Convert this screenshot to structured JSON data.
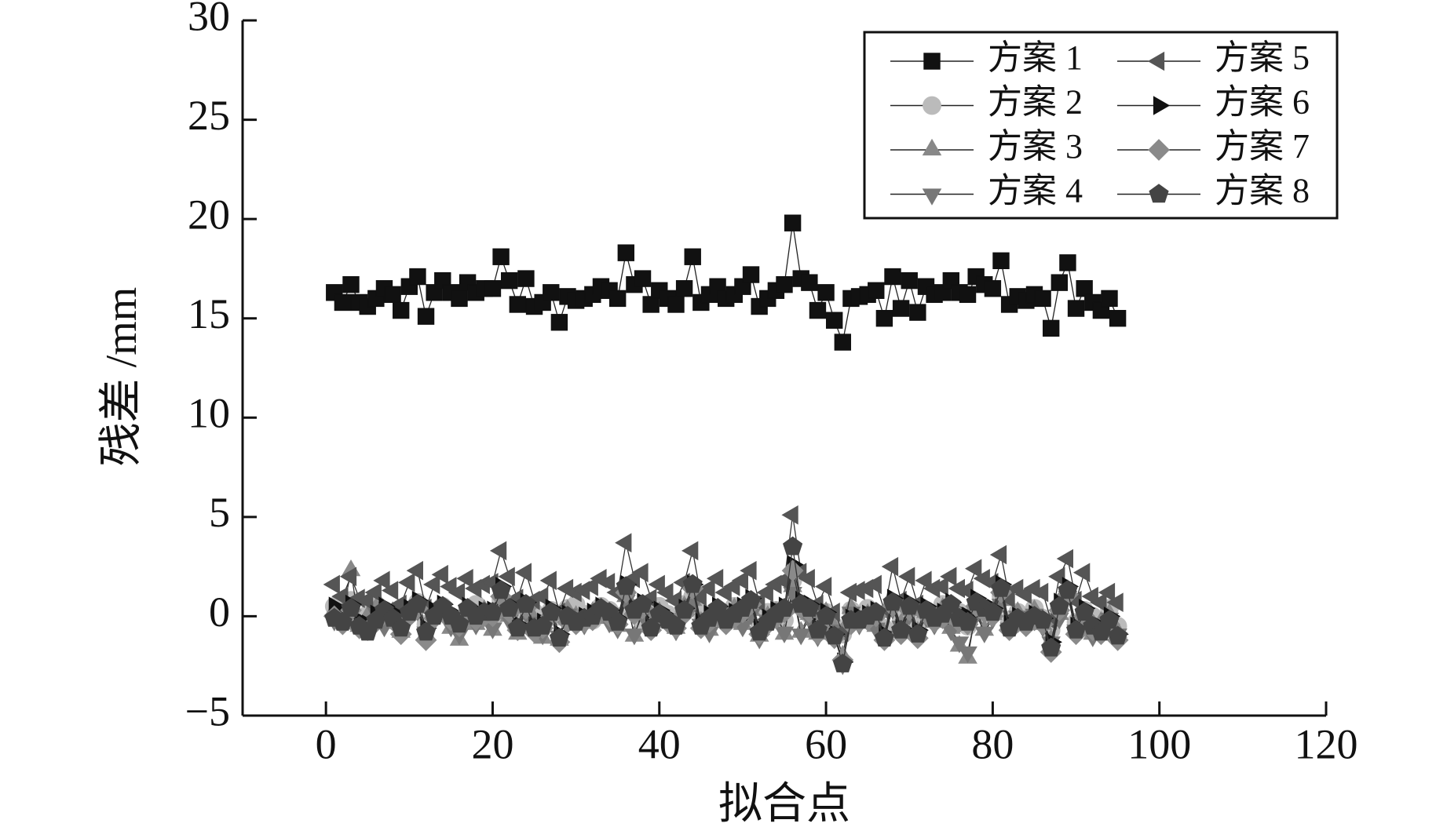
{
  "chart_data": {
    "type": "line",
    "x_label": "拟合点",
    "y_label": "残差 /mm",
    "x": [
      1,
      2,
      3,
      4,
      5,
      6,
      7,
      8,
      9,
      10,
      11,
      12,
      13,
      14,
      15,
      16,
      17,
      18,
      19,
      20,
      21,
      22,
      23,
      24,
      25,
      26,
      27,
      28,
      29,
      30,
      31,
      32,
      33,
      34,
      35,
      36,
      37,
      38,
      39,
      40,
      41,
      42,
      43,
      44,
      45,
      46,
      47,
      48,
      49,
      50,
      51,
      52,
      53,
      54,
      55,
      56,
      57,
      58,
      59,
      60,
      61,
      62,
      63,
      64,
      65,
      66,
      67,
      68,
      69,
      70,
      71,
      72,
      73,
      74,
      75,
      76,
      77,
      78,
      79,
      80,
      81,
      82,
      83,
      84,
      85,
      86,
      87,
      88,
      89,
      90,
      91,
      92,
      93,
      94,
      95
    ],
    "xlim": [
      -10,
      120
    ],
    "xticks": [
      0,
      20,
      40,
      60,
      80,
      100,
      120
    ],
    "ylim": [
      -5,
      30
    ],
    "yticks": [
      {
        "value": -5,
        "label": "−5"
      },
      0,
      5,
      10,
      15,
      20,
      25,
      30
    ],
    "legend_position": "upper right",
    "series": [
      {
        "name": "方案 1",
        "color": "#111111",
        "marker": "square",
        "values": [
          16.3,
          15.8,
          16.7,
          15.8,
          15.6,
          16.0,
          16.5,
          16.2,
          15.4,
          16.6,
          17.1,
          15.1,
          16.3,
          16.9,
          16.3,
          16.0,
          16.8,
          16.3,
          16.5,
          16.5,
          18.1,
          16.9,
          15.7,
          17.0,
          15.6,
          15.8,
          16.3,
          14.8,
          16.1,
          15.9,
          16.0,
          16.2,
          16.6,
          16.4,
          16.0,
          18.3,
          16.7,
          17.0,
          15.7,
          16.4,
          16.0,
          15.7,
          16.5,
          18.1,
          15.8,
          16.2,
          16.6,
          16.0,
          16.2,
          16.6,
          17.2,
          15.6,
          16.0,
          16.4,
          16.7,
          19.8,
          17.0,
          16.8,
          15.4,
          16.3,
          14.9,
          13.8,
          16.0,
          16.1,
          16.2,
          16.4,
          15.0,
          17.1,
          15.5,
          16.9,
          15.3,
          16.6,
          16.2,
          16.3,
          16.9,
          16.3,
          16.2,
          17.1,
          16.7,
          16.5,
          17.9,
          15.7,
          16.1,
          15.9,
          16.2,
          16.0,
          14.5,
          16.8,
          17.8,
          15.5,
          16.5,
          15.8,
          15.4,
          16.0,
          15.0
        ]
      },
      {
        "name": "方案 2",
        "color": "#bbbbbb",
        "marker": "circle",
        "values": [
          0.5,
          0.2,
          0.8,
          -0.3,
          0.1,
          0.6,
          0.3,
          -0.2,
          0.4,
          0.1,
          0.7,
          -0.4,
          0.2,
          0.5,
          0.0,
          -0.3,
          0.3,
          0.6,
          0.1,
          -0.2,
          0.8,
          0.4,
          -0.1,
          0.5,
          0.2,
          -0.5,
          0.3,
          0.0,
          0.4,
          0.6,
          0.1,
          -0.2,
          0.5,
          0.3,
          0.0,
          1.2,
          0.4,
          -0.3,
          0.2,
          0.5,
          0.1,
          -0.1,
          0.6,
          1.0,
          0.2,
          -0.4,
          0.3,
          0.1,
          0.5,
          0.0,
          0.4,
          -0.6,
          0.2,
          0.3,
          -0.2,
          1.8,
          0.5,
          0.1,
          -0.3,
          0.2,
          -0.5,
          -0.9,
          0.3,
          0.1,
          0.4,
          0.0,
          -0.6,
          0.7,
          -0.2,
          0.5,
          -0.4,
          0.3,
          0.1,
          0.6,
          0.0,
          0.2,
          -0.5,
          0.4,
          0.1,
          0.3,
          1.0,
          -0.2,
          0.2,
          0.0,
          0.4,
          -0.1,
          -0.7,
          0.5,
          1.1,
          -0.3,
          0.3,
          0.0,
          -0.2,
          0.4,
          -0.5
        ]
      },
      {
        "name": "方案 3",
        "color": "#888888",
        "marker": "triangle-up",
        "values": [
          0.3,
          0.1,
          2.3,
          -0.5,
          0.0,
          0.4,
          -0.3,
          0.2,
          -0.8,
          0.3,
          0.5,
          -0.9,
          0.1,
          0.4,
          -0.6,
          -1.2,
          0.2,
          -0.4,
          0.3,
          -0.7,
          0.6,
          0.0,
          -0.9,
          0.4,
          -0.2,
          -1.1,
          0.1,
          -1.2,
          0.3,
          0.0,
          -0.3,
          0.2,
          0.4,
          -0.1,
          -0.5,
          1.0,
          -1.0,
          0.3,
          -0.4,
          0.2,
          -0.2,
          -0.6,
          0.5,
          0.8,
          -0.3,
          -0.7,
          0.2,
          -0.1,
          0.4,
          -0.4,
          0.3,
          -1.0,
          0.0,
          0.2,
          -0.9,
          1.5,
          -0.8,
          0.1,
          -0.9,
          0.2,
          -0.6,
          -2.0,
          0.4,
          -0.3,
          0.1,
          -0.5,
          -0.9,
          0.6,
          -0.4,
          0.3,
          -0.8,
          0.2,
          -0.3,
          0.4,
          -0.6,
          -1.5,
          -2.1,
          0.3,
          -0.7,
          0.1,
          0.8,
          -0.5,
          0.2,
          -0.3,
          0.3,
          -0.4,
          -1.2,
          0.1,
          1.3,
          -0.6,
          0.2,
          -0.9,
          -0.3,
          0.1,
          -0.8
        ]
      },
      {
        "name": "方案 4",
        "color": "#777777",
        "marker": "triangle-down",
        "values": [
          -0.2,
          0.1,
          0.4,
          -0.6,
          -0.3,
          0.2,
          -0.5,
          0.0,
          -0.7,
          0.1,
          0.3,
          -0.8,
          -0.1,
          0.2,
          -0.5,
          -0.9,
          0.0,
          -0.4,
          0.1,
          -0.6,
          0.4,
          -0.2,
          -0.7,
          0.2,
          -0.3,
          -0.9,
          0.0,
          -1.0,
          0.1,
          -0.2,
          -0.4,
          0.0,
          0.2,
          -0.3,
          -0.6,
          0.8,
          -0.9,
          0.1,
          -0.5,
          0.0,
          -0.3,
          -0.7,
          0.3,
          0.6,
          -0.4,
          -0.8,
          0.0,
          -0.2,
          0.2,
          -0.5,
          0.1,
          -1.1,
          -0.2,
          0.0,
          -0.8,
          1.2,
          -0.9,
          -0.1,
          -1.0,
          0.0,
          -0.7,
          -2.4,
          0.2,
          -0.4,
          -0.1,
          -0.6,
          -1.0,
          0.4,
          -0.5,
          0.1,
          -0.9,
          0.0,
          -0.4,
          0.2,
          -0.7,
          -1.3,
          -1.8,
          0.1,
          -0.8,
          -0.1,
          0.6,
          -0.6,
          0.0,
          -0.4,
          0.1,
          -0.5,
          -1.3,
          -0.1,
          1.0,
          -0.7,
          0.0,
          -1.0,
          -0.4,
          -0.1,
          -0.9
        ]
      },
      {
        "name": "方案 5",
        "color": "#555555",
        "marker": "triangle-left",
        "values": [
          1.6,
          1.0,
          2.0,
          0.9,
          0.8,
          1.2,
          1.8,
          1.3,
          0.6,
          1.7,
          2.3,
          0.4,
          1.6,
          2.1,
          1.5,
          1.2,
          1.9,
          1.4,
          1.6,
          1.7,
          3.3,
          2.0,
          0.9,
          2.2,
          0.8,
          1.0,
          1.8,
          0.2,
          1.4,
          1.2,
          1.3,
          1.5,
          1.9,
          1.7,
          1.2,
          3.7,
          1.9,
          2.2,
          0.9,
          1.6,
          1.2,
          0.8,
          1.7,
          3.3,
          1.0,
          1.4,
          1.9,
          1.2,
          1.5,
          1.8,
          2.3,
          0.7,
          1.2,
          1.6,
          1.8,
          5.1,
          2.2,
          1.9,
          0.6,
          1.5,
          0.2,
          -0.8,
          1.2,
          1.3,
          1.4,
          1.6,
          0.3,
          2.5,
          0.8,
          2.0,
          0.6,
          1.8,
          1.4,
          1.5,
          2.0,
          1.4,
          1.3,
          2.4,
          1.9,
          1.7,
          3.1,
          0.9,
          1.4,
          1.1,
          1.4,
          1.2,
          -0.2,
          2.0,
          2.9,
          0.8,
          2.2,
          1.0,
          0.7,
          1.2,
          0.7
        ]
      },
      {
        "name": "方案 6",
        "color": "#111111",
        "marker": "triangle-right",
        "values": [
          0.5,
          0.0,
          0.6,
          -0.2,
          -0.4,
          0.1,
          0.5,
          0.2,
          -0.3,
          0.4,
          0.8,
          -0.6,
          0.3,
          0.6,
          0.2,
          -0.1,
          0.5,
          0.1,
          0.3,
          0.3,
          1.5,
          0.6,
          -0.4,
          0.7,
          -0.5,
          -0.3,
          0.4,
          -0.9,
          0.1,
          -0.1,
          0.0,
          0.2,
          0.5,
          0.3,
          -0.1,
          1.6,
          0.4,
          0.7,
          -0.4,
          0.3,
          0.0,
          -0.3,
          0.4,
          1.6,
          -0.3,
          0.1,
          0.5,
          -0.1,
          0.2,
          0.5,
          0.9,
          -0.6,
          -0.1,
          0.3,
          0.5,
          2.6,
          0.8,
          0.6,
          -0.5,
          0.2,
          -0.9,
          -2.3,
          -0.1,
          0.0,
          0.1,
          0.3,
          -0.9,
          0.9,
          -0.6,
          0.7,
          -0.7,
          0.5,
          0.1,
          0.2,
          0.7,
          0.2,
          0.0,
          0.9,
          0.6,
          0.4,
          1.6,
          -0.4,
          0.0,
          -0.2,
          0.1,
          -0.1,
          -1.3,
          0.7,
          1.5,
          -0.5,
          0.4,
          -0.3,
          -0.6,
          0.0,
          -0.9
        ]
      },
      {
        "name": "方案 7",
        "color": "#8a8a8a",
        "marker": "diamond",
        "values": [
          0.0,
          -0.4,
          0.3,
          -0.6,
          -0.7,
          -0.3,
          0.1,
          -0.2,
          -0.9,
          0.0,
          0.4,
          -1.2,
          -0.1,
          0.3,
          -0.2,
          -0.5,
          0.2,
          -0.2,
          0.0,
          0.0,
          1.0,
          0.2,
          -0.7,
          0.4,
          -0.8,
          -0.6,
          0.0,
          -1.3,
          -0.3,
          -0.4,
          -0.3,
          -0.2,
          0.2,
          0.0,
          -0.4,
          1.2,
          0.1,
          0.4,
          -0.7,
          -0.1,
          -0.3,
          -0.6,
          0.1,
          1.4,
          -0.6,
          -0.3,
          0.2,
          -0.4,
          -0.1,
          0.2,
          0.6,
          -0.9,
          -0.4,
          -0.1,
          0.2,
          2.3,
          0.4,
          0.2,
          -0.9,
          -0.2,
          -1.1,
          -2.2,
          -0.4,
          -0.3,
          -0.2,
          0.0,
          -1.2,
          0.5,
          -0.9,
          0.3,
          -1.1,
          0.1,
          -0.3,
          -0.1,
          0.4,
          -0.3,
          -0.4,
          0.5,
          0.2,
          0.0,
          1.2,
          -0.7,
          -0.3,
          -0.5,
          -0.2,
          -0.4,
          -1.8,
          0.3,
          1.1,
          -0.9,
          0.0,
          -0.7,
          -0.9,
          -0.4,
          -1.2
        ]
      },
      {
        "name": "方案 8",
        "color": "#444444",
        "marker": "pentagon",
        "values": [
          -0.1,
          -0.3,
          0.4,
          -0.5,
          -0.8,
          -0.2,
          0.3,
          -0.1,
          -0.6,
          0.2,
          0.6,
          -0.8,
          0.0,
          0.5,
          0.0,
          -0.4,
          0.4,
          0.0,
          0.2,
          0.2,
          1.3,
          0.4,
          -0.6,
          0.6,
          -0.6,
          -0.5,
          0.2,
          -1.1,
          0.0,
          -0.3,
          -0.1,
          0.0,
          0.4,
          0.2,
          -0.3,
          1.5,
          0.3,
          0.6,
          -0.6,
          0.1,
          -0.2,
          -0.5,
          0.3,
          1.6,
          -0.5,
          -0.1,
          0.4,
          -0.2,
          0.1,
          0.4,
          0.8,
          -0.8,
          -0.3,
          0.1,
          0.4,
          3.5,
          0.6,
          0.4,
          -0.7,
          0.0,
          -1.0,
          -2.4,
          -0.2,
          -0.2,
          0.0,
          0.2,
          -1.1,
          0.7,
          -0.7,
          0.5,
          -0.9,
          0.3,
          -0.1,
          0.1,
          0.6,
          -0.1,
          -0.3,
          0.7,
          0.4,
          0.2,
          1.4,
          -0.6,
          -0.1,
          -0.3,
          0.0,
          -0.2,
          -1.6,
          0.5,
          1.3,
          -0.7,
          0.2,
          -0.5,
          -0.8,
          -0.2,
          -1.0
        ]
      }
    ]
  }
}
